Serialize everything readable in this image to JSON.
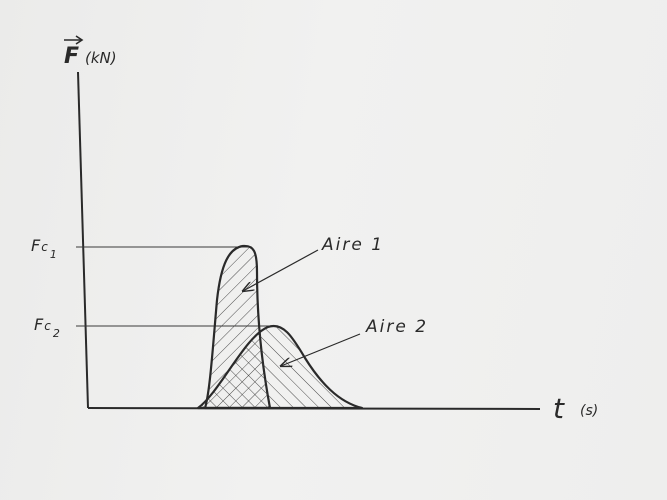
{
  "diagram": {
    "y_axis": {
      "symbol": "F",
      "unit": "(kN)"
    },
    "x_axis": {
      "symbol": "t",
      "unit": "(s)"
    },
    "levels": [
      {
        "base": "F",
        "sub_c": "c",
        "index": "1"
      },
      {
        "base": "F",
        "sub_c": "c",
        "index": "2"
      }
    ],
    "areas": [
      {
        "label": "Aire 1"
      },
      {
        "label": "Aire 2"
      }
    ],
    "ink_color": "#2a2a2a"
  }
}
